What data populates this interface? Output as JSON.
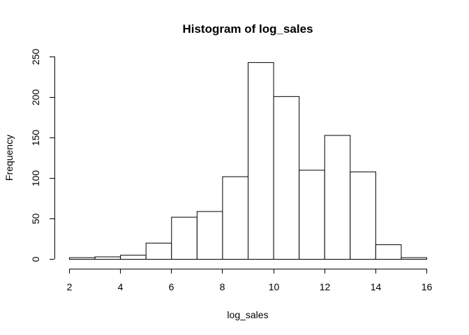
{
  "chart_data": {
    "type": "bar",
    "title": "Histogram of log_sales",
    "xlabel": "log_sales",
    "ylabel": "Frequency",
    "xlim": [
      2,
      16
    ],
    "ylim": [
      0,
      250
    ],
    "x_ticks": [
      2,
      4,
      6,
      8,
      10,
      12,
      14,
      16
    ],
    "y_ticks": [
      0,
      50,
      100,
      150,
      200,
      250
    ],
    "bins": [
      {
        "from": 2,
        "to": 3,
        "count": 2
      },
      {
        "from": 3,
        "to": 4,
        "count": 3
      },
      {
        "from": 4,
        "to": 5,
        "count": 5
      },
      {
        "from": 5,
        "to": 6,
        "count": 20
      },
      {
        "from": 6,
        "to": 7,
        "count": 52
      },
      {
        "from": 7,
        "to": 8,
        "count": 59
      },
      {
        "from": 8,
        "to": 9,
        "count": 102
      },
      {
        "from": 9,
        "to": 10,
        "count": 243
      },
      {
        "from": 10,
        "to": 11,
        "count": 201
      },
      {
        "from": 11,
        "to": 12,
        "count": 110
      },
      {
        "from": 12,
        "to": 13,
        "count": 153
      },
      {
        "from": 13,
        "to": 14,
        "count": 108
      },
      {
        "from": 14,
        "to": 15,
        "count": 18
      },
      {
        "from": 15,
        "to": 16,
        "count": 2
      }
    ],
    "grid": false,
    "colors": {
      "fill": "#ffffff",
      "stroke": "#000000"
    }
  }
}
